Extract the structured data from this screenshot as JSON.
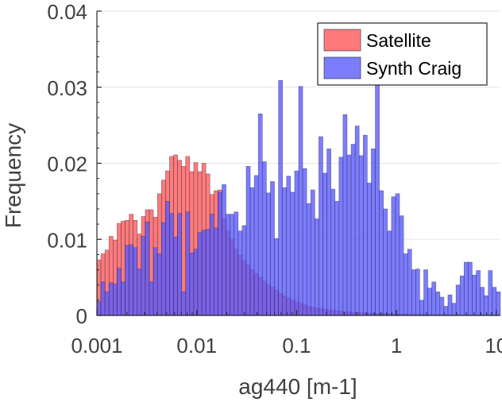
{
  "chart_data": {
    "type": "bar",
    "xlabel": "ag440 [m-1]",
    "ylabel": "Frequency",
    "x_scale": "log",
    "xlim": [
      0.001,
      11
    ],
    "ylim": [
      0,
      0.04
    ],
    "x_ticks": [
      0.001,
      0.01,
      0.1,
      1,
      10
    ],
    "x_tick_labels": [
      "0.001",
      "0.01",
      "0.1",
      "1",
      "10"
    ],
    "y_ticks": [
      0,
      0.01,
      0.02,
      0.03,
      0.04
    ],
    "y_tick_labels": [
      "0",
      "0.01",
      "0.02",
      "0.03",
      "0.04"
    ],
    "grid": true,
    "legend_position": "top-right",
    "series": [
      {
        "name": "Satellite",
        "color": "#ff5a5a",
        "opacity": 0.8,
        "values": [
          0.0073,
          0.0081,
          0.0086,
          0.0104,
          0.0099,
          0.0121,
          0.0124,
          0.0125,
          0.0133,
          0.0125,
          0.0107,
          0.013,
          0.0139,
          0.0139,
          0.0129,
          0.016,
          0.0178,
          0.019,
          0.0209,
          0.0211,
          0.0204,
          0.0196,
          0.0209,
          0.0189,
          0.0201,
          0.0189,
          0.02,
          0.0186,
          0.0159,
          0.0164,
          0.0165,
          0.0127,
          0.0111,
          0.01,
          0.0087,
          0.0079,
          0.0072,
          0.0066,
          0.006,
          0.0055,
          0.005,
          0.0045,
          0.0041,
          0.0037,
          0.0033,
          0.0029,
          0.0026,
          0.0023,
          0.002,
          0.0018,
          0.0016,
          0.0014,
          0.0012,
          0.0011,
          0.001,
          0.0009,
          0.00082,
          0.00075,
          0.00068,
          0.00062,
          0.00056,
          0.00051,
          0.00047,
          0.00043,
          0.0004,
          0.00037,
          0.00034,
          0.00032,
          0.0003,
          0.00028,
          0.00026,
          0.00024,
          0.00022,
          0.0002,
          0.00019,
          0.00018,
          0.00017,
          0.00016,
          0.00015,
          0.00014,
          0.00013,
          0.00012,
          0.00011,
          0.0001,
          0.0001,
          9e-05,
          8e-05,
          8e-05,
          7e-05,
          6e-05,
          6e-05,
          5e-05,
          5e-05,
          4e-05,
          4e-05,
          3e-05,
          3e-05,
          3e-05,
          2e-05,
          2e-05
        ]
      },
      {
        "name": "Synth Craig",
        "color": "#5b5bff",
        "opacity": 0.8,
        "values": [
          0.0018,
          0.0044,
          0.0031,
          0.0043,
          0.0041,
          0.0062,
          0.0044,
          0.0092,
          0.0093,
          0.0089,
          0.0061,
          0.0104,
          0.0123,
          0.0044,
          0.0089,
          0.0081,
          0.0122,
          0.015,
          0.0134,
          0.0103,
          0.0134,
          0.0031,
          0.0136,
          0.0082,
          0.0087,
          0.0109,
          0.0112,
          0.0113,
          0.0133,
          0.0115,
          0.0162,
          0.0172,
          0.0133,
          0.0133,
          0.0136,
          0.0111,
          0.0118,
          0.0196,
          0.0168,
          0.0184,
          0.0265,
          0.0202,
          0.0161,
          0.0176,
          0.0101,
          0.0309,
          0.0168,
          0.0183,
          0.0162,
          0.019,
          0.0301,
          0.0193,
          0.0147,
          0.0165,
          0.0127,
          0.0235,
          0.0187,
          0.0219,
          0.0166,
          0.015,
          0.0208,
          0.0264,
          0.0211,
          0.0225,
          0.0249,
          0.021,
          0.0237,
          0.0174,
          0.0219,
          0.0305,
          0.0164,
          0.014,
          0.0111,
          0.0156,
          0.016,
          0.0131,
          0.0081,
          0.0087,
          0.006,
          0.0061,
          0.002,
          0.006,
          0.0036,
          0.0044,
          0.0031,
          0.0024,
          0.0012,
          0.0027,
          0.0016,
          0.004,
          0.0052,
          0.007,
          0.007,
          0.0053,
          0.0059,
          0.0037,
          0.0026,
          0.0059,
          0.0037,
          0.0031
        ]
      }
    ]
  }
}
